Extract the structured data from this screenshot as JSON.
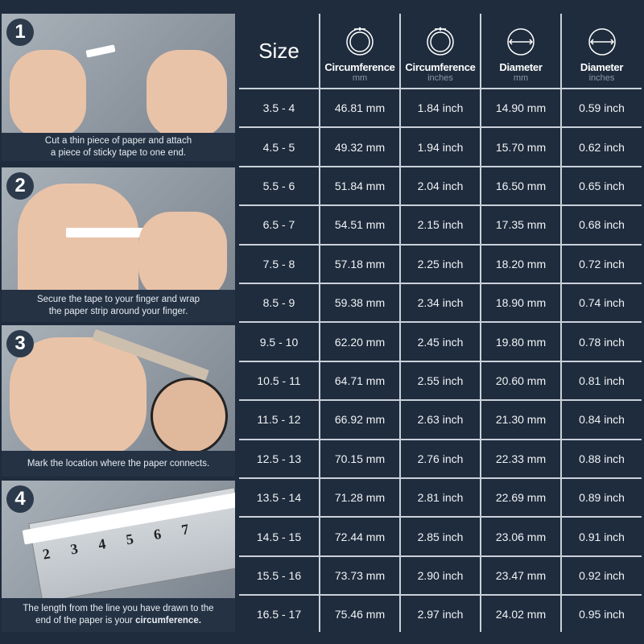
{
  "steps": [
    {
      "number": "1",
      "caption_lines": [
        "Cut a thin piece of paper and attach",
        "a piece of sticky tape to one end."
      ]
    },
    {
      "number": "2",
      "caption_lines": [
        "Secure the tape to your finger and wrap",
        "the paper strip around your finger."
      ]
    },
    {
      "number": "3",
      "caption_lines": [
        "Mark the location where the paper connects."
      ]
    },
    {
      "number": "4",
      "caption_lines": [
        "The length from the line you have drawn to the",
        "end of the paper is your "
      ],
      "caption_bold": "circumference."
    }
  ],
  "ruler_numbers": [
    "2",
    "3",
    "4",
    "5",
    "6",
    "7"
  ],
  "table": {
    "headers": [
      {
        "label": "Size",
        "icon": "none"
      },
      {
        "label": "Circumference",
        "unit": "mm",
        "icon": "ring-circumference-icon"
      },
      {
        "label": "Circumference",
        "unit": "inches",
        "icon": "ring-circumference-icon"
      },
      {
        "label": "Diameter",
        "unit": "mm",
        "icon": "diameter-icon"
      },
      {
        "label": "Diameter",
        "unit": "inches",
        "icon": "diameter-icon"
      }
    ],
    "rows": [
      [
        "3.5 - 4",
        "46.81 mm",
        "1.84 inch",
        "14.90 mm",
        "0.59 inch"
      ],
      [
        "4.5 - 5",
        "49.32 mm",
        "1.94 inch",
        "15.70 mm",
        "0.62 inch"
      ],
      [
        "5.5 - 6",
        "51.84 mm",
        "2.04 inch",
        "16.50 mm",
        "0.65 inch"
      ],
      [
        "6.5 - 7",
        "54.51 mm",
        "2.15 inch",
        "17.35 mm",
        "0.68 inch"
      ],
      [
        "7.5 - 8",
        "57.18 mm",
        "2.25 inch",
        "18.20 mm",
        "0.72 inch"
      ],
      [
        "8.5 - 9",
        "59.38 mm",
        "2.34 inch",
        "18.90 mm",
        "0.74 inch"
      ],
      [
        "9.5 - 10",
        "62.20 mm",
        "2.45 inch",
        "19.80 mm",
        "0.78 inch"
      ],
      [
        "10.5 - 11",
        "64.71 mm",
        "2.55 inch",
        "20.60 mm",
        "0.81 inch"
      ],
      [
        "11.5 - 12",
        "66.92 mm",
        "2.63 inch",
        "21.30 mm",
        "0.84 inch"
      ],
      [
        "12.5 - 13",
        "70.15 mm",
        "2.76 inch",
        "22.33 mm",
        "0.88 inch"
      ],
      [
        "13.5 - 14",
        "71.28 mm",
        "2.81 inch",
        "22.69 mm",
        "0.89 inch"
      ],
      [
        "14.5 - 15",
        "72.44 mm",
        "2.85 inch",
        "23.06 mm",
        "0.91 inch"
      ],
      [
        "15.5 - 16",
        "73.73 mm",
        "2.90 inch",
        "23.47 mm",
        "0.92 inch"
      ],
      [
        "16.5 - 17",
        "75.46 mm",
        "2.97 inch",
        "24.02 mm",
        "0.95 inch"
      ]
    ]
  },
  "colors": {
    "background": "#1f2c3d",
    "grid": "#c9d1da",
    "caption_bg": "#243244"
  }
}
